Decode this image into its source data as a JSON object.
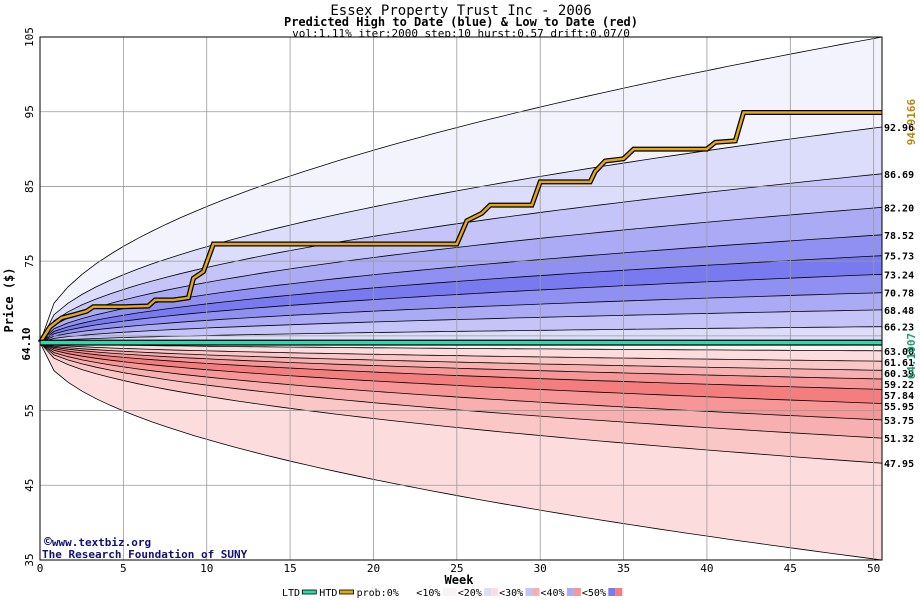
{
  "colors": {
    "blue_bands": [
      "#f3f3fd",
      "#dcdcfb",
      "#c4c4f8",
      "#aaaaf5",
      "#9090f3",
      "#7a7af0"
    ],
    "red_bands": [
      "#fdf1f1",
      "#fcdcdc",
      "#fac6c6",
      "#f8afaf",
      "#f69696",
      "#f47e7e"
    ],
    "high_path": "#e3a617",
    "low_path": "#2fd8ad",
    "grid": "#9a9a9a"
  },
  "chart_data": {
    "type": "area",
    "title": "Essex Property Trust Inc - 2006",
    "subtitle": "Predicted High to Date (blue) &  Low to Date (red)",
    "params": "vol:1.11% iter:2000 step:10 hurst:0.57 drift:0.07/0",
    "xlabel": "Week",
    "ylabel": "Price ($)",
    "xlim": [
      0,
      50.5
    ],
    "ylim": [
      35,
      105
    ],
    "x_ticks": [
      0,
      5,
      10,
      15,
      20,
      25,
      30,
      35,
      40,
      45,
      50
    ],
    "y_ticks": [
      35,
      45,
      55,
      65,
      75,
      85,
      95,
      105
    ],
    "y_tick_labels": [
      "35",
      "45",
      "55",
      "",
      "75",
      "85",
      "95",
      "105"
    ],
    "start_price": 64.1,
    "start_price_label": "64.10",
    "blue_bands_note": "probability bands of predicted high-to-date",
    "high_quantiles": [
      {
        "end": 92.96,
        "label": "92.96"
      },
      {
        "end": 86.69,
        "label": "86.69"
      },
      {
        "end": 82.2,
        "label": "82.20"
      },
      {
        "end": 78.52,
        "label": "78.52"
      },
      {
        "end": 75.73,
        "label": "75.73"
      },
      {
        "end": 73.24,
        "label": "73.24"
      },
      {
        "end": 70.78,
        "label": "70.78"
      },
      {
        "end": 68.48,
        "label": "68.48"
      },
      {
        "end": 66.23,
        "label": "66.23"
      }
    ],
    "low_quantiles": [
      {
        "end": 63.0,
        "label": "63.00"
      },
      {
        "end": 61.61,
        "label": "61.61"
      },
      {
        "end": 60.39,
        "label": "60.39"
      },
      {
        "end": 59.22,
        "label": "59.22"
      },
      {
        "end": 57.84,
        "label": "57.84"
      },
      {
        "end": 55.95,
        "label": "55.95"
      },
      {
        "end": 53.75,
        "label": "53.75"
      },
      {
        "end": 51.32,
        "label": "51.32"
      },
      {
        "end": 47.95,
        "label": "47.95"
      }
    ],
    "outer_high_bound_end": 105,
    "outer_low_bound_end": 35,
    "high_path": {
      "name": "HTD",
      "end_value": 94.9166,
      "end_label": "94.9166",
      "points": [
        [
          0,
          64.1
        ],
        [
          0.6,
          66.2
        ],
        [
          1.3,
          67.4
        ],
        [
          2.0,
          67.8
        ],
        [
          2.8,
          68.3
        ],
        [
          3.2,
          68.9
        ],
        [
          4.5,
          68.9
        ],
        [
          5.0,
          68.9
        ],
        [
          6.5,
          69.0
        ],
        [
          6.9,
          69.8
        ],
        [
          8.0,
          69.8
        ],
        [
          8.9,
          70.1
        ],
        [
          9.2,
          72.7
        ],
        [
          9.8,
          73.6
        ],
        [
          10.4,
          77.3
        ],
        [
          15,
          77.3
        ],
        [
          20,
          77.3
        ],
        [
          25,
          77.3
        ],
        [
          25.6,
          80.4
        ],
        [
          26.5,
          81.4
        ],
        [
          27.0,
          82.5
        ],
        [
          29.5,
          82.5
        ],
        [
          30.0,
          85.6
        ],
        [
          33.0,
          85.6
        ],
        [
          33.3,
          87.0
        ],
        [
          33.9,
          88.4
        ],
        [
          35.0,
          88.7
        ],
        [
          35.6,
          90.0
        ],
        [
          40.0,
          90.0
        ],
        [
          40.5,
          90.9
        ],
        [
          41.7,
          91.1
        ],
        [
          42.2,
          94.9
        ],
        [
          50.5,
          94.9
        ]
      ]
    },
    "low_path": {
      "name": "LTD",
      "end_value": 64.1007,
      "end_label": "64.1007",
      "points": [
        [
          0,
          64.1
        ],
        [
          50.5,
          64.1
        ]
      ]
    },
    "legend": [
      "LTD",
      "HTD",
      "prob:0%",
      "<10%",
      "<20%",
      "<30%",
      "<40%",
      "<50%"
    ],
    "legend_placement": "bottom"
  },
  "watermark": {
    "line1": "www.textbiz.org",
    "line2": "The Research Foundation of SUNY"
  }
}
